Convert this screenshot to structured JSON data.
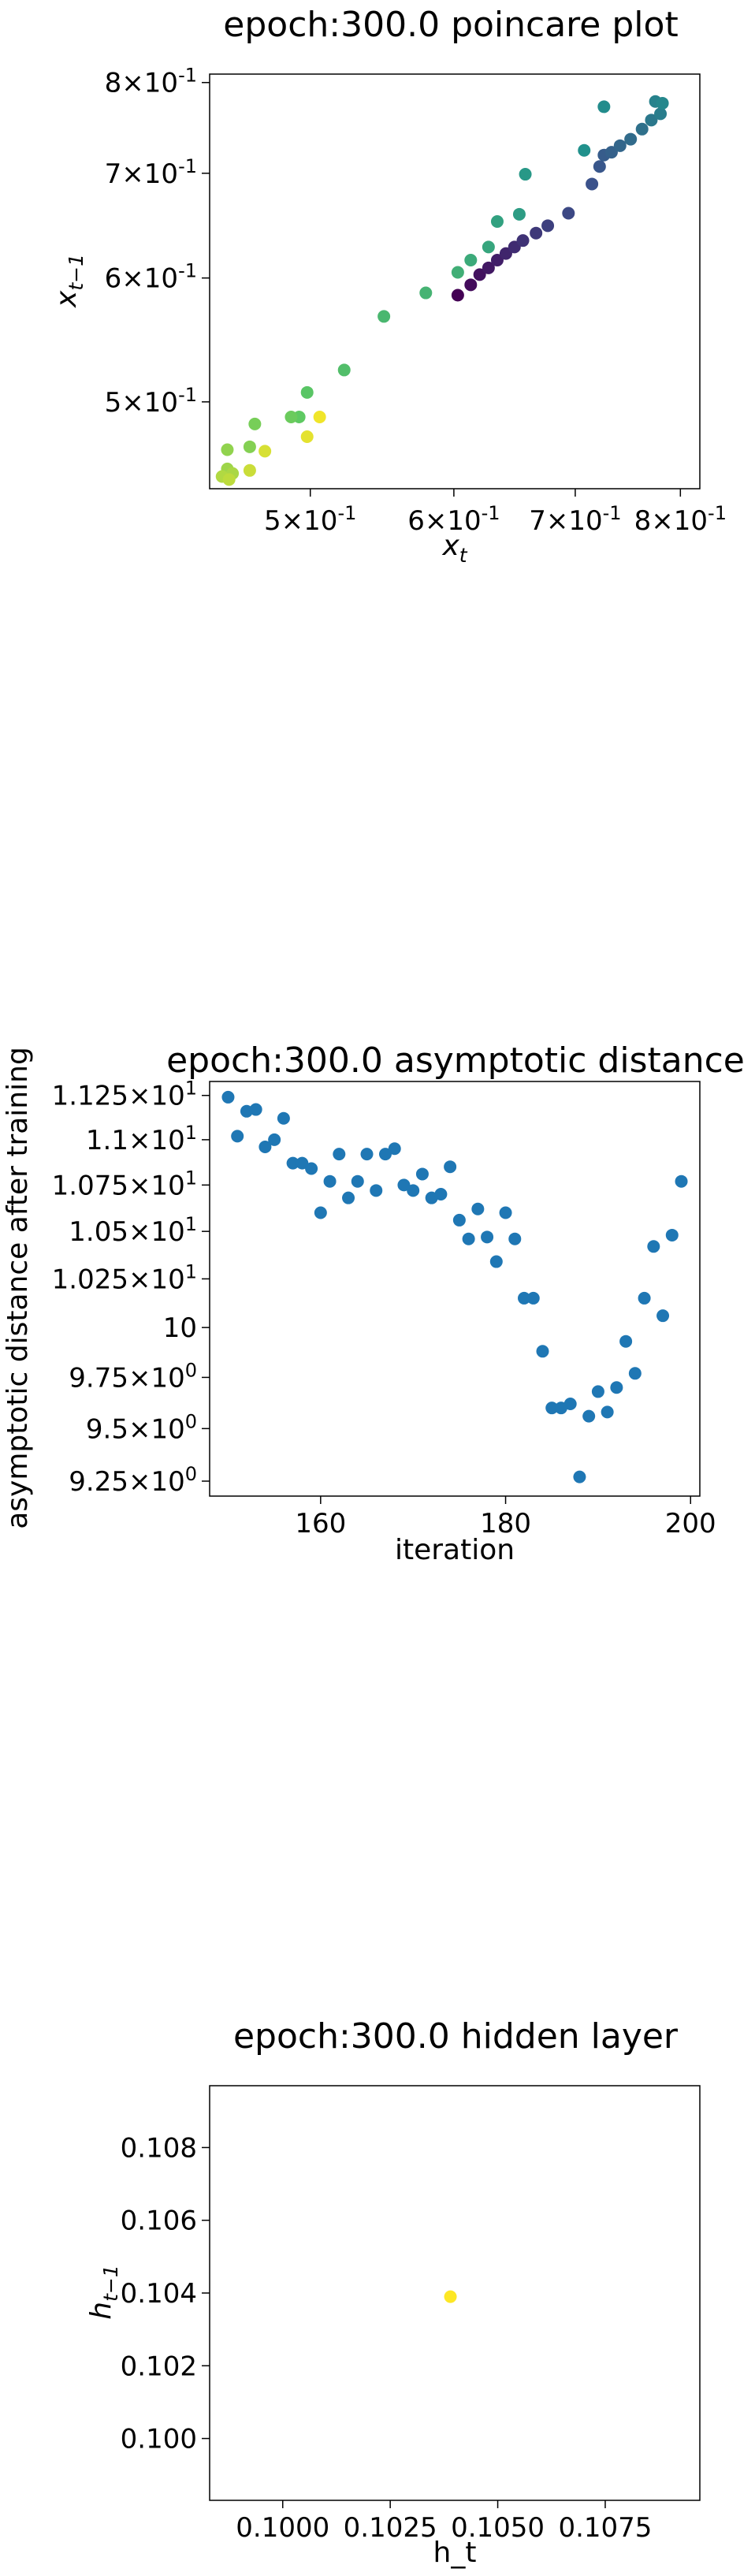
{
  "chart_data": [
    {
      "type": "scatter",
      "title": "epoch:300.0 poincare plot",
      "xlabel": "x_t",
      "ylabel": "x_{t-1}",
      "xscale": "log",
      "yscale": "log",
      "xlim": [
        0.44,
        0.82
      ],
      "ylim": [
        0.44,
        0.81
      ],
      "xticks": [
        {
          "value": 0.5,
          "mant": "5",
          "exp": "-1"
        },
        {
          "value": 0.6,
          "mant": "6",
          "exp": "-1"
        },
        {
          "value": 0.7,
          "mant": "7",
          "exp": "-1"
        },
        {
          "value": 0.8,
          "mant": "8",
          "exp": "-1"
        }
      ],
      "yticks": [
        {
          "value": 0.5,
          "mant": "5",
          "exp": "-1"
        },
        {
          "value": 0.6,
          "mant": "6",
          "exp": "-1"
        },
        {
          "value": 0.7,
          "mant": "7",
          "exp": "-1"
        },
        {
          "value": 0.8,
          "mant": "8",
          "exp": "-1"
        }
      ],
      "colormap": "viridis",
      "points": [
        {
          "x": 0.603,
          "y": 0.585,
          "c": 0.0
        },
        {
          "x": 0.613,
          "y": 0.594,
          "c": 0.03
        },
        {
          "x": 0.62,
          "y": 0.603,
          "c": 0.05
        },
        {
          "x": 0.627,
          "y": 0.609,
          "c": 0.07
        },
        {
          "x": 0.634,
          "y": 0.616,
          "c": 0.09
        },
        {
          "x": 0.641,
          "y": 0.622,
          "c": 0.11
        },
        {
          "x": 0.648,
          "y": 0.628,
          "c": 0.13
        },
        {
          "x": 0.655,
          "y": 0.634,
          "c": 0.15
        },
        {
          "x": 0.666,
          "y": 0.641,
          "c": 0.17
        },
        {
          "x": 0.676,
          "y": 0.648,
          "c": 0.19
        },
        {
          "x": 0.694,
          "y": 0.66,
          "c": 0.22
        },
        {
          "x": 0.715,
          "y": 0.689,
          "c": 0.25
        },
        {
          "x": 0.722,
          "y": 0.707,
          "c": 0.27
        },
        {
          "x": 0.726,
          "y": 0.719,
          "c": 0.29
        },
        {
          "x": 0.733,
          "y": 0.722,
          "c": 0.31
        },
        {
          "x": 0.741,
          "y": 0.729,
          "c": 0.33
        },
        {
          "x": 0.751,
          "y": 0.736,
          "c": 0.35
        },
        {
          "x": 0.762,
          "y": 0.747,
          "c": 0.37
        },
        {
          "x": 0.771,
          "y": 0.757,
          "c": 0.4
        },
        {
          "x": 0.78,
          "y": 0.764,
          "c": 0.42
        },
        {
          "x": 0.775,
          "y": 0.778,
          "c": 0.44
        },
        {
          "x": 0.782,
          "y": 0.776,
          "c": 0.46
        },
        {
          "x": 0.726,
          "y": 0.772,
          "c": 0.48
        },
        {
          "x": 0.708,
          "y": 0.724,
          "c": 0.5
        },
        {
          "x": 0.657,
          "y": 0.699,
          "c": 0.53
        },
        {
          "x": 0.652,
          "y": 0.659,
          "c": 0.55
        },
        {
          "x": 0.634,
          "y": 0.652,
          "c": 0.57
        },
        {
          "x": 0.627,
          "y": 0.628,
          "c": 0.59
        },
        {
          "x": 0.613,
          "y": 0.616,
          "c": 0.61
        },
        {
          "x": 0.603,
          "y": 0.605,
          "c": 0.63
        },
        {
          "x": 0.579,
          "y": 0.587,
          "c": 0.65
        },
        {
          "x": 0.549,
          "y": 0.567,
          "c": 0.67
        },
        {
          "x": 0.522,
          "y": 0.524,
          "c": 0.7
        },
        {
          "x": 0.498,
          "y": 0.507,
          "c": 0.73
        },
        {
          "x": 0.493,
          "y": 0.489,
          "c": 0.75
        },
        {
          "x": 0.488,
          "y": 0.489,
          "c": 0.77
        },
        {
          "x": 0.466,
          "y": 0.484,
          "c": 0.79
        },
        {
          "x": 0.463,
          "y": 0.468,
          "c": 0.81
        },
        {
          "x": 0.45,
          "y": 0.466,
          "c": 0.83
        },
        {
          "x": 0.45,
          "y": 0.453,
          "c": 0.85
        },
        {
          "x": 0.453,
          "y": 0.45,
          "c": 0.87
        },
        {
          "x": 0.447,
          "y": 0.448,
          "c": 0.88
        },
        {
          "x": 0.451,
          "y": 0.446,
          "c": 0.9
        },
        {
          "x": 0.463,
          "y": 0.452,
          "c": 0.92
        },
        {
          "x": 0.472,
          "y": 0.465,
          "c": 0.94
        },
        {
          "x": 0.498,
          "y": 0.475,
          "c": 0.96
        },
        {
          "x": 0.506,
          "y": 0.489,
          "c": 0.98
        }
      ]
    },
    {
      "type": "scatter",
      "title": "epoch:300.0 asymptotic distance",
      "xlabel": "iteration",
      "ylabel": "asymptotic distance after training",
      "yscale": "log",
      "xlim": [
        148,
        201
      ],
      "ylim": [
        9.18,
        11.33
      ],
      "xticks": [
        {
          "value": 160,
          "label": "160"
        },
        {
          "value": 180,
          "label": "180"
        },
        {
          "value": 200,
          "label": "200"
        }
      ],
      "yticks": [
        {
          "value": 9.25,
          "mant": "9.25",
          "exp": "0"
        },
        {
          "value": 9.5,
          "mant": "9.5",
          "exp": "0"
        },
        {
          "value": 9.75,
          "mant": "9.75",
          "exp": "0"
        },
        {
          "value": 10,
          "mant": "10",
          "exp": "1",
          "plain": true
        },
        {
          "value": 10.25,
          "mant": "1.025",
          "exp": "1"
        },
        {
          "value": 10.5,
          "mant": "1.05",
          "exp": "1"
        },
        {
          "value": 10.75,
          "mant": "1.075",
          "exp": "1"
        },
        {
          "value": 11.0,
          "mant": "1.1",
          "exp": "1"
        },
        {
          "value": 11.25,
          "mant": "1.125",
          "exp": "1"
        }
      ],
      "color": "#1f77b4",
      "x": [
        150,
        151,
        152,
        153,
        154,
        155,
        156,
        157,
        158,
        159,
        160,
        161,
        162,
        163,
        164,
        165,
        166,
        167,
        168,
        169,
        170,
        171,
        172,
        173,
        174,
        175,
        176,
        177,
        178,
        179,
        180,
        181,
        182,
        183,
        184,
        185,
        186,
        187,
        188,
        189,
        190,
        191,
        192,
        193,
        194,
        195,
        196,
        197,
        198,
        199
      ],
      "y": [
        11.24,
        11.02,
        11.16,
        11.17,
        10.96,
        11.0,
        11.12,
        10.87,
        10.87,
        10.84,
        10.6,
        10.77,
        10.92,
        10.68,
        10.77,
        10.92,
        10.72,
        10.92,
        10.95,
        10.75,
        10.72,
        10.81,
        10.68,
        10.7,
        10.85,
        10.56,
        10.46,
        10.62,
        10.47,
        10.34,
        10.6,
        10.46,
        10.15,
        10.15,
        9.88,
        9.6,
        9.6,
        9.62,
        9.27,
        9.56,
        9.68,
        9.58,
        9.7,
        9.93,
        9.77,
        10.15,
        10.42,
        10.06,
        10.48,
        10.77
      ]
    },
    {
      "type": "scatter",
      "title": "epoch:300.0 hidden layer",
      "xlabel": "h_t",
      "ylabel": "h_{t-1}",
      "xlim": [
        0.0983,
        0.1097
      ],
      "ylim": [
        0.0983,
        0.1097
      ],
      "xticks": [
        {
          "value": 0.1,
          "label": "0.1000"
        },
        {
          "value": 0.1025,
          "label": "0.1025"
        },
        {
          "value": 0.105,
          "label": "0.1050"
        },
        {
          "value": 0.1075,
          "label": "0.1075"
        }
      ],
      "yticks": [
        {
          "value": 0.1,
          "label": "0.100"
        },
        {
          "value": 0.102,
          "label": "0.102"
        },
        {
          "value": 0.104,
          "label": "0.104"
        },
        {
          "value": 0.106,
          "label": "0.106"
        },
        {
          "value": 0.108,
          "label": "0.108"
        }
      ],
      "color": "#fde725",
      "points": [
        {
          "x": 0.1039,
          "y": 0.1039
        }
      ]
    }
  ]
}
